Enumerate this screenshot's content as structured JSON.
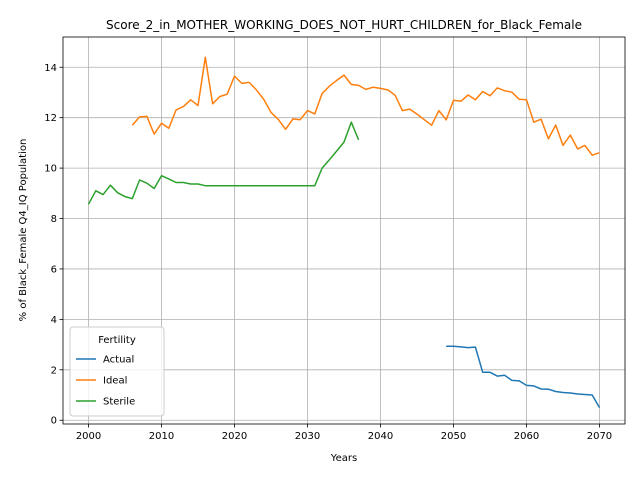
{
  "chart_data": {
    "type": "line",
    "title": "Score_2_in_MOTHER_WORKING_DOES_NOT_HURT_CHILDREN_for_Black_Female",
    "xlabel": "Years",
    "ylabel": "% of Black_Female Q4_IQ Population",
    "xlim": [
      1996.5,
      2073.5
    ],
    "ylim": [
      -0.15,
      15.2
    ],
    "xticks": [
      2000,
      2010,
      2020,
      2030,
      2040,
      2050,
      2060,
      2070
    ],
    "yticks": [
      0,
      2,
      4,
      6,
      8,
      10,
      12,
      14
    ],
    "grid": true,
    "legend": {
      "title": "Fertility",
      "position": "lower left"
    },
    "series": [
      {
        "name": "Actual",
        "color": "#1f77b4",
        "x": [
          2049,
          2050,
          2051,
          2052,
          2053,
          2054,
          2055,
          2056,
          2057,
          2058,
          2059,
          2060,
          2061,
          2062,
          2063,
          2064,
          2065,
          2066,
          2067,
          2068,
          2069,
          2070
        ],
        "y": [
          2.93,
          2.93,
          2.91,
          2.88,
          2.9,
          1.9,
          1.9,
          1.75,
          1.78,
          1.58,
          1.56,
          1.38,
          1.36,
          1.24,
          1.23,
          1.14,
          1.1,
          1.08,
          1.04,
          1.02,
          1.0,
          0.5
        ]
      },
      {
        "name": "Ideal",
        "color": "#ff7f0e",
        "x": [
          2006,
          2007,
          2008,
          2009,
          2010,
          2011,
          2012,
          2013,
          2014,
          2015,
          2016,
          2017,
          2018,
          2019,
          2020,
          2021,
          2022,
          2023,
          2024,
          2025,
          2026,
          2027,
          2028,
          2029,
          2030,
          2031,
          2032,
          2033,
          2034,
          2035,
          2036,
          2037,
          2038,
          2039,
          2040,
          2041,
          2042,
          2043,
          2044,
          2045,
          2046,
          2047,
          2048,
          2049,
          2050,
          2051,
          2052,
          2053,
          2054,
          2055,
          2056,
          2057,
          2058,
          2059,
          2060,
          2061,
          2062,
          2063,
          2064,
          2065,
          2066,
          2067,
          2068,
          2069,
          2070
        ],
        "y": [
          11.7,
          12.03,
          12.05,
          11.35,
          11.78,
          11.58,
          12.31,
          12.44,
          12.71,
          12.48,
          14.4,
          12.55,
          12.84,
          12.93,
          13.65,
          13.36,
          13.4,
          13.1,
          12.73,
          12.21,
          11.93,
          11.54,
          11.95,
          11.92,
          12.28,
          12.15,
          12.96,
          13.25,
          13.48,
          13.69,
          13.32,
          13.28,
          13.12,
          13.21,
          13.16,
          13.1,
          12.89,
          12.28,
          12.34,
          12.14,
          11.92,
          11.7,
          12.28,
          11.91,
          12.69,
          12.65,
          12.9,
          12.71,
          13.04,
          12.87,
          13.18,
          13.07,
          13.01,
          12.73,
          12.71,
          11.82,
          11.94,
          11.16,
          11.71,
          10.9,
          11.31,
          10.76,
          10.9,
          10.51,
          10.61
        ]
      },
      {
        "name": "Sterile",
        "color": "#2ca02c",
        "x": [
          2000,
          2001,
          2002,
          2003,
          2004,
          2005,
          2006,
          2007,
          2008,
          2009,
          2010,
          2011,
          2012,
          2013,
          2014,
          2015,
          2016,
          2017,
          2018,
          2019,
          2020,
          2021,
          2022,
          2023,
          2024,
          2025,
          2026,
          2027,
          2028,
          2029,
          2030,
          2031,
          2032,
          2033,
          2034,
          2035,
          2036,
          2037
        ],
        "y": [
          8.57,
          9.1,
          8.95,
          9.32,
          9.02,
          8.87,
          8.79,
          9.53,
          9.4,
          9.19,
          9.7,
          9.57,
          9.43,
          9.43,
          9.37,
          9.37,
          9.3,
          9.3,
          9.3,
          9.3,
          9.3,
          9.3,
          9.3,
          9.3,
          9.3,
          9.3,
          9.3,
          9.3,
          9.3,
          9.3,
          9.3,
          9.3,
          10.0,
          10.33,
          10.68,
          11.03,
          11.82,
          11.12
        ]
      }
    ]
  }
}
